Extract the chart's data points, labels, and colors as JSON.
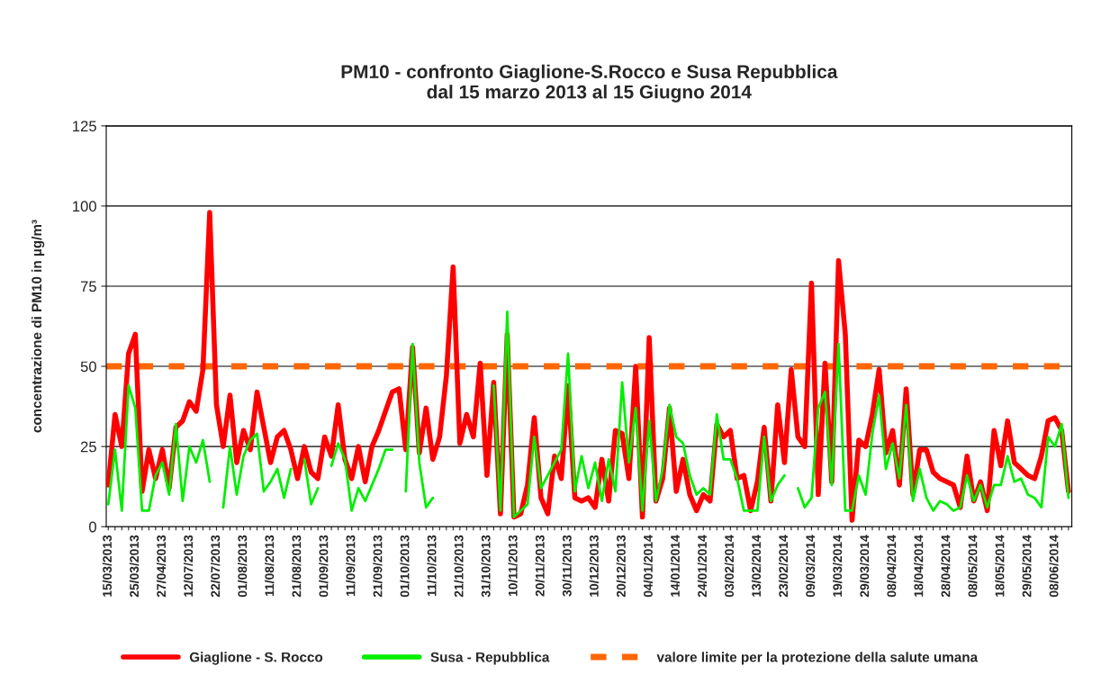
{
  "chart_data": {
    "type": "line",
    "title": "PM10 - confronto Giaglione-S.Rocco e Susa Repubblica\ndal 15 marzo 2013 al 15 Giugno 2014",
    "ylabel": "concentrazione di PM10 in µg/m³",
    "categories": [
      "15/03/2013",
      null,
      null,
      null,
      "25/03/2013",
      null,
      null,
      null,
      "27/04/2013",
      null,
      null,
      null,
      "12/07/2013",
      null,
      null,
      null,
      "22/07/2013",
      null,
      null,
      null,
      "01/08/2013",
      null,
      null,
      null,
      "11/08/2013",
      null,
      null,
      null,
      "21/08/2013",
      null,
      null,
      null,
      "01/09/2013",
      null,
      null,
      null,
      "11/09/2013",
      null,
      null,
      null,
      "21/09/2013",
      null,
      null,
      null,
      "01/10/2013",
      null,
      null,
      null,
      "11/10/2013",
      null,
      null,
      null,
      "21/10/2013",
      null,
      null,
      null,
      "31/10/2013",
      null,
      null,
      null,
      "10/11/2013",
      null,
      null,
      null,
      "20/11/2013",
      null,
      null,
      null,
      "30/11/2013",
      null,
      null,
      null,
      "10/12/2013",
      null,
      null,
      null,
      "20/12/2013",
      null,
      null,
      null,
      "04/01/2014",
      null,
      null,
      null,
      "14/01/2014",
      null,
      null,
      null,
      "24/01/2014",
      null,
      null,
      null,
      "03/02/2014",
      null,
      null,
      null,
      "13/02/2014",
      null,
      null,
      null,
      "23/02/2014",
      null,
      null,
      null,
      "09/03/2014",
      null,
      null,
      null,
      "19/03/2014",
      null,
      null,
      null,
      "29/03/2014",
      null,
      null,
      null,
      "08/04/2014",
      null,
      null,
      null,
      "18/04/2014",
      null,
      null,
      null,
      "28/04/2014",
      null,
      null,
      null,
      "08/05/2014",
      null,
      null,
      null,
      "18/05/2014",
      null,
      null,
      null,
      "29/05/2014",
      null,
      null,
      null,
      "08/06/2014",
      null,
      null
    ],
    "series": [
      {
        "name": "Giaglione - S. Rocco",
        "color": "#ff0000",
        "values": [
          13,
          35,
          25,
          54,
          60,
          11,
          24,
          15,
          24,
          12,
          31,
          33,
          39,
          36,
          49,
          98,
          38,
          25,
          41,
          20,
          30,
          24,
          42,
          31,
          20,
          28,
          30,
          24,
          15,
          25,
          17,
          15,
          28,
          22,
          38,
          21,
          15,
          25,
          14,
          25,
          30,
          36,
          42,
          43,
          24,
          56,
          23,
          37,
          21,
          28,
          47,
          81,
          26,
          35,
          28,
          51,
          16,
          45,
          4,
          60,
          3,
          4,
          13,
          34,
          9,
          4,
          22,
          15,
          44,
          9,
          8,
          9,
          6,
          21,
          8,
          30,
          29,
          15,
          50,
          3,
          59,
          8,
          15,
          37,
          11,
          21,
          10,
          5,
          10,
          8,
          32,
          28,
          30,
          15,
          16,
          5,
          14,
          31,
          8,
          38,
          20,
          49,
          28,
          25,
          76,
          10,
          51,
          14,
          83,
          60,
          2,
          27,
          25,
          35,
          49,
          23,
          30,
          13,
          43,
          10,
          24,
          24,
          17,
          15,
          14,
          13,
          6,
          22,
          8,
          14,
          5,
          30,
          19,
          33,
          20,
          18,
          16,
          15,
          22,
          33,
          34,
          30,
          11
        ]
      },
      {
        "name": "Susa - Repubblica",
        "color": "#00ee00",
        "values": [
          7,
          24,
          5,
          44,
          37,
          5,
          5,
          16,
          20,
          10,
          32,
          8,
          25,
          20,
          27,
          14,
          null,
          6,
          25,
          10,
          22,
          27,
          29,
          11,
          14,
          18,
          9,
          18,
          null,
          21,
          7,
          12,
          null,
          19,
          26,
          21,
          5,
          12,
          8,
          13,
          18,
          24,
          24,
          null,
          11,
          57,
          20,
          6,
          9,
          null,
          null,
          null,
          null,
          null,
          null,
          null,
          null,
          44,
          5,
          67,
          3,
          5,
          7,
          28,
          12,
          16,
          20,
          24,
          54,
          11,
          22,
          12,
          20,
          8,
          21,
          11,
          45,
          20,
          37,
          5,
          33,
          8,
          18,
          38,
          28,
          26,
          16,
          10,
          12,
          10,
          35,
          21,
          21,
          15,
          5,
          5,
          5,
          28,
          8,
          13,
          16,
          null,
          12,
          6,
          9,
          37,
          42,
          13,
          57,
          5,
          5,
          16,
          10,
          29,
          41,
          18,
          26,
          15,
          38,
          8,
          18,
          9,
          5,
          8,
          7,
          5,
          6,
          16,
          8,
          13,
          6,
          13,
          13,
          22,
          14,
          15,
          10,
          9,
          6,
          28,
          25,
          32,
          9
        ]
      }
    ],
    "ref_lines": [
      {
        "axis": "y",
        "value": 50,
        "label": "valore limite per la protezione della salute umana",
        "color": "#ff6600",
        "line_style": "dashed"
      }
    ],
    "ylim": [
      0,
      125
    ],
    "yticks": [
      0,
      25,
      50,
      75,
      100,
      125
    ],
    "grid": "y",
    "legend": "bottom",
    "marker": "none",
    "line_style": "solid"
  }
}
